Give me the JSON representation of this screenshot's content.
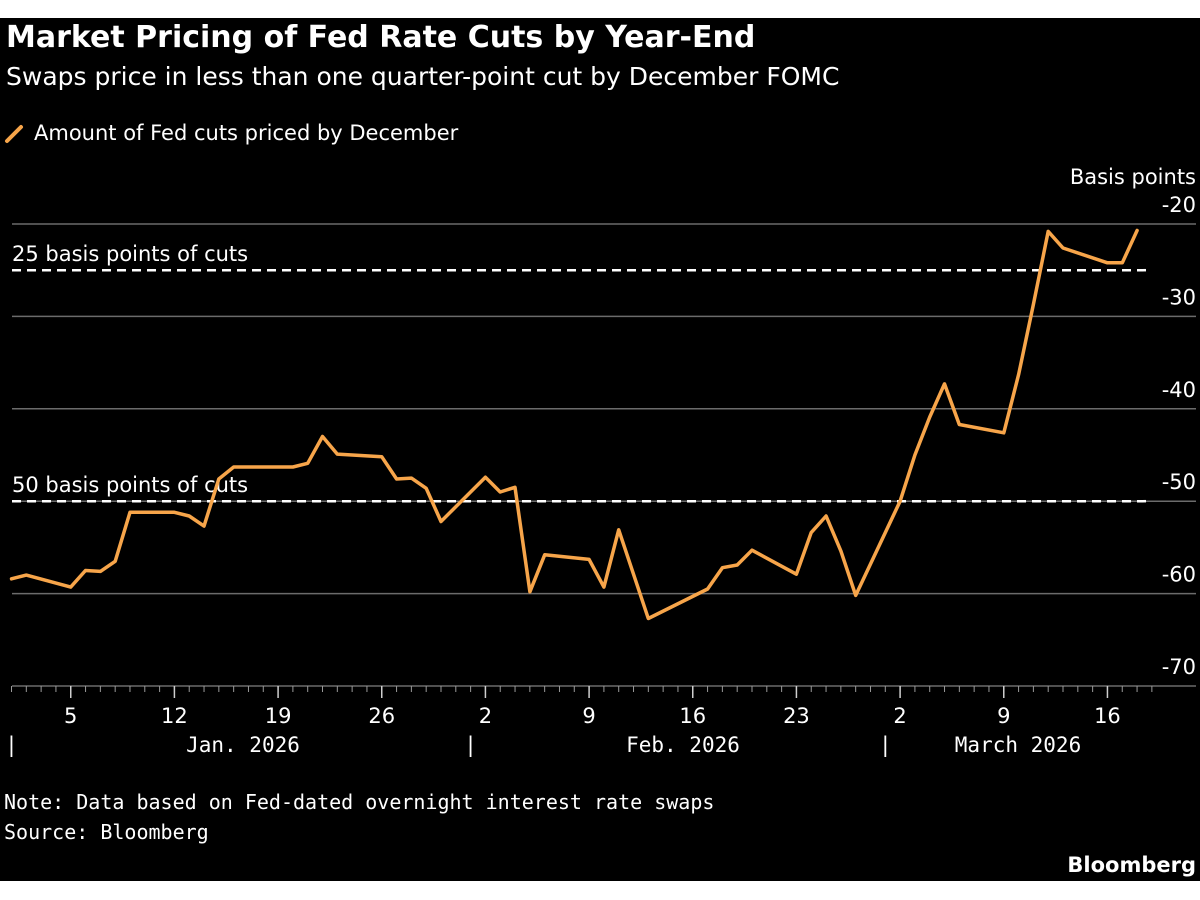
{
  "chart_data": {
    "type": "line",
    "title": "Market Pricing of Fed Rate Cuts by Year-End",
    "subtitle": "Swaps price in less than one quarter-point cut by December FOMC",
    "ylabel": "Basis points",
    "ylim": [
      -72,
      -18
    ],
    "yticks": [
      -20,
      -30,
      -40,
      -50,
      -60,
      -70
    ],
    "grid": true,
    "legend_position": "top-left",
    "series": [
      {
        "name": "Amount of Fed cuts priced by December",
        "color": "#f7a54a",
        "points": [
          [
            "2026-01-01",
            -58.4
          ],
          [
            "2026-01-02",
            -58.0
          ],
          [
            "2026-01-05",
            -59.3
          ],
          [
            "2026-01-06",
            -57.5
          ],
          [
            "2026-01-07",
            -57.6
          ],
          [
            "2026-01-08",
            -56.5
          ],
          [
            "2026-01-09",
            -51.2
          ],
          [
            "2026-01-12",
            -51.2
          ],
          [
            "2026-01-13",
            -51.6
          ],
          [
            "2026-01-14",
            -52.7
          ],
          [
            "2026-01-15",
            -47.6
          ],
          [
            "2026-01-16",
            -46.3
          ],
          [
            "2026-01-19",
            -46.3
          ],
          [
            "2026-01-20",
            -46.3
          ],
          [
            "2026-01-21",
            -45.9
          ],
          [
            "2026-01-22",
            -43.0
          ],
          [
            "2026-01-23",
            -44.9
          ],
          [
            "2026-01-26",
            -45.2
          ],
          [
            "2026-01-27",
            -47.6
          ],
          [
            "2026-01-28",
            -47.5
          ],
          [
            "2026-01-29",
            -48.6
          ],
          [
            "2026-01-30",
            -52.2
          ],
          [
            "2026-02-02",
            -47.4
          ],
          [
            "2026-02-03",
            -49.0
          ],
          [
            "2026-02-04",
            -48.5
          ],
          [
            "2026-02-05",
            -59.8
          ],
          [
            "2026-02-06",
            -55.8
          ],
          [
            "2026-02-09",
            -56.3
          ],
          [
            "2026-02-10",
            -59.3
          ],
          [
            "2026-02-11",
            -53.1
          ],
          [
            "2026-02-13",
            -62.7
          ],
          [
            "2026-02-17",
            -59.5
          ],
          [
            "2026-02-18",
            -57.2
          ],
          [
            "2026-02-19",
            -56.9
          ],
          [
            "2026-02-20",
            -55.3
          ],
          [
            "2026-02-23",
            -57.9
          ],
          [
            "2026-02-24",
            -53.4
          ],
          [
            "2026-02-25",
            -51.6
          ],
          [
            "2026-02-26",
            -55.4
          ],
          [
            "2026-02-27",
            -60.2
          ],
          [
            "2026-03-02",
            -50.0
          ],
          [
            "2026-03-03",
            -45.0
          ],
          [
            "2026-03-04",
            -40.9
          ],
          [
            "2026-03-05",
            -37.3
          ],
          [
            "2026-03-06",
            -41.7
          ],
          [
            "2026-03-09",
            -42.6
          ],
          [
            "2026-03-10",
            -36.3
          ],
          [
            "2026-03-11",
            -28.7
          ],
          [
            "2026-03-12",
            -20.8
          ],
          [
            "2026-03-13",
            -22.6
          ],
          [
            "2026-03-16",
            -24.2
          ],
          [
            "2026-03-17",
            -24.2
          ],
          [
            "2026-03-18",
            -20.7
          ]
        ]
      }
    ],
    "reference_lines": [
      {
        "y": -25,
        "label": "25 basis points of cuts",
        "style": "dashed"
      },
      {
        "y": -50,
        "label": "50 basis points of cuts",
        "style": "dashed"
      }
    ],
    "x_tick_labels": [
      "5",
      "12",
      "19",
      "26",
      "2",
      "9",
      "16",
      "23",
      "2",
      "9",
      "16"
    ],
    "x_month_labels": [
      "Jan. 2026",
      "Feb. 2026",
      "March 2026"
    ],
    "note": "Note: Data based on Fed-dated overnight interest rate swaps",
    "source": "Source: Bloomberg"
  },
  "colors": {
    "background": "#000000",
    "line": "#f7a54a",
    "grid": "#6b6b6b",
    "text": "#ffffff"
  },
  "brand": "Bloomberg"
}
